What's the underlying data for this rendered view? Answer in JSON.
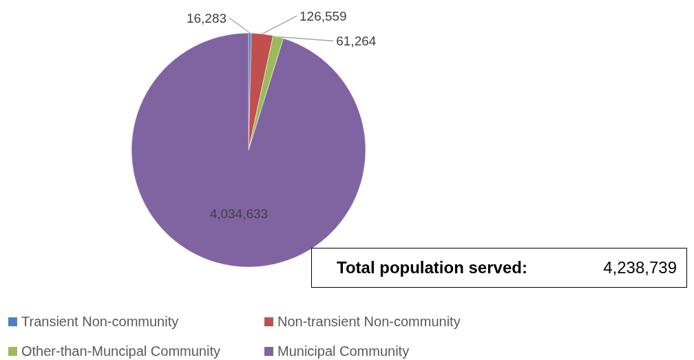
{
  "chart_data": {
    "type": "pie",
    "categories": [
      "Transient Non-community",
      "Non-transient Non-community",
      "Other-than-Muncipal Community",
      "Municipal Community"
    ],
    "values": [
      16283,
      126559,
      61264,
      4034633
    ],
    "colors": [
      "#4f81bd",
      "#c0504d",
      "#9bbb59",
      "#8064a2"
    ],
    "value_labels": [
      "16,283",
      "126,559",
      "61,264",
      "4,034,633"
    ],
    "legend": "bottom left",
    "annotations": [
      "Total population served:",
      "4,238,739"
    ]
  }
}
